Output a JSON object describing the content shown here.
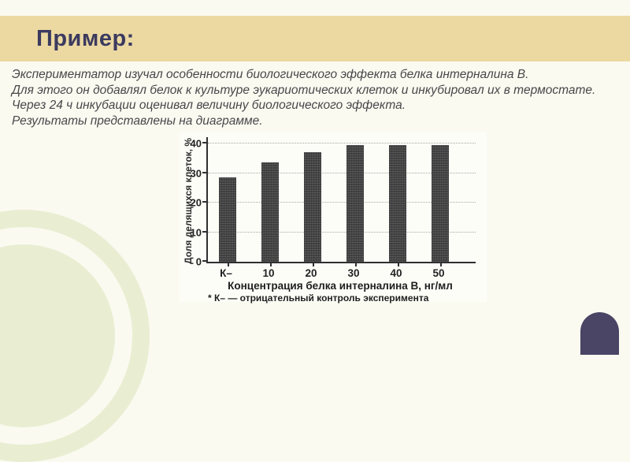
{
  "slide": {
    "title": "Пример:",
    "lines": [
      "Экспериментатор изучал особенности биологического эффекта белка интерналина В.",
      "Для этого он добавлял белок к культуре эукариотических клеток и инкубировал их в термостате.",
      "Через 24 ч инкубации оценивал величину биологического эффекта.",
      "Результаты представлены на диаграмме."
    ]
  },
  "chart_data": {
    "type": "bar",
    "title": "",
    "categories": [
      "К–",
      "10",
      "20",
      "30",
      "40",
      "50"
    ],
    "values": [
      28.5,
      33.5,
      37,
      39.5,
      39.5,
      39.5
    ],
    "xlabel": "Концентрация белка интерналина В, нг/мл",
    "ylabel": "Доля делящихся клеток, %",
    "footnote": "* К– — отрицательный контроль эксперимента",
    "yticks": [
      0,
      10,
      20,
      30,
      40
    ],
    "ylim": [
      0,
      42
    ],
    "grid": "horizontal-dotted",
    "legend": "none",
    "bar_color": "#454545"
  },
  "colors": {
    "background": "#fbfaf0",
    "header_band": "#ecd9a1",
    "title_text": "#3b3a5f",
    "body_text": "#47474b",
    "decor_circle": "#e9eed3",
    "corner_pill": "#4a4465",
    "bar": "#454545"
  }
}
